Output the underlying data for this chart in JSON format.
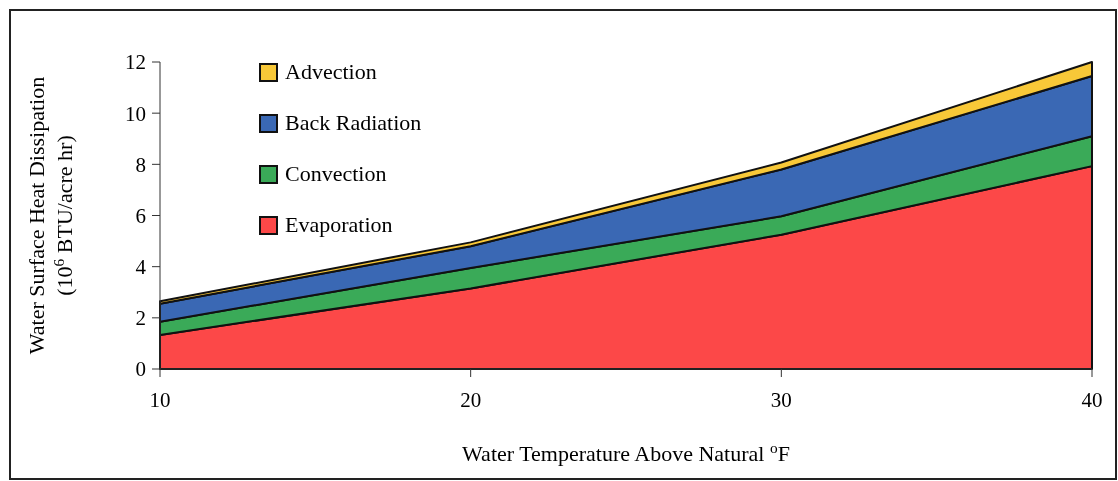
{
  "chart_data": {
    "type": "area",
    "stacked": true,
    "xlabel": "Water Temperature Above Natural $^{o}$F",
    "ylabel": "Water Surface Heat Dissipation\n(10$^{6}$ BTU/acre hr)",
    "x": [
      10,
      20,
      30,
      40
    ],
    "xlim": [
      10,
      40
    ],
    "xticks": [
      10,
      20,
      30,
      40
    ],
    "ylim": [
      0,
      12
    ],
    "yticks": [
      0,
      2,
      4,
      6,
      8,
      10,
      12
    ],
    "grid": false,
    "legend": "top left",
    "series": [
      {
        "name": "Evaporation",
        "color": "#fc4848",
        "values": [
          1.33,
          3.15,
          5.25,
          7.93
        ]
      },
      {
        "name": "Convection",
        "color": "#3aaa58",
        "values": [
          0.52,
          0.8,
          0.72,
          1.17
        ]
      },
      {
        "name": "Back Radiation",
        "color": "#3a68b4",
        "values": [
          0.7,
          0.85,
          1.83,
          2.35
        ]
      },
      {
        "name": "Advection",
        "color": "#f8c838",
        "values": [
          0.1,
          0.15,
          0.27,
          0.55
        ]
      }
    ]
  }
}
